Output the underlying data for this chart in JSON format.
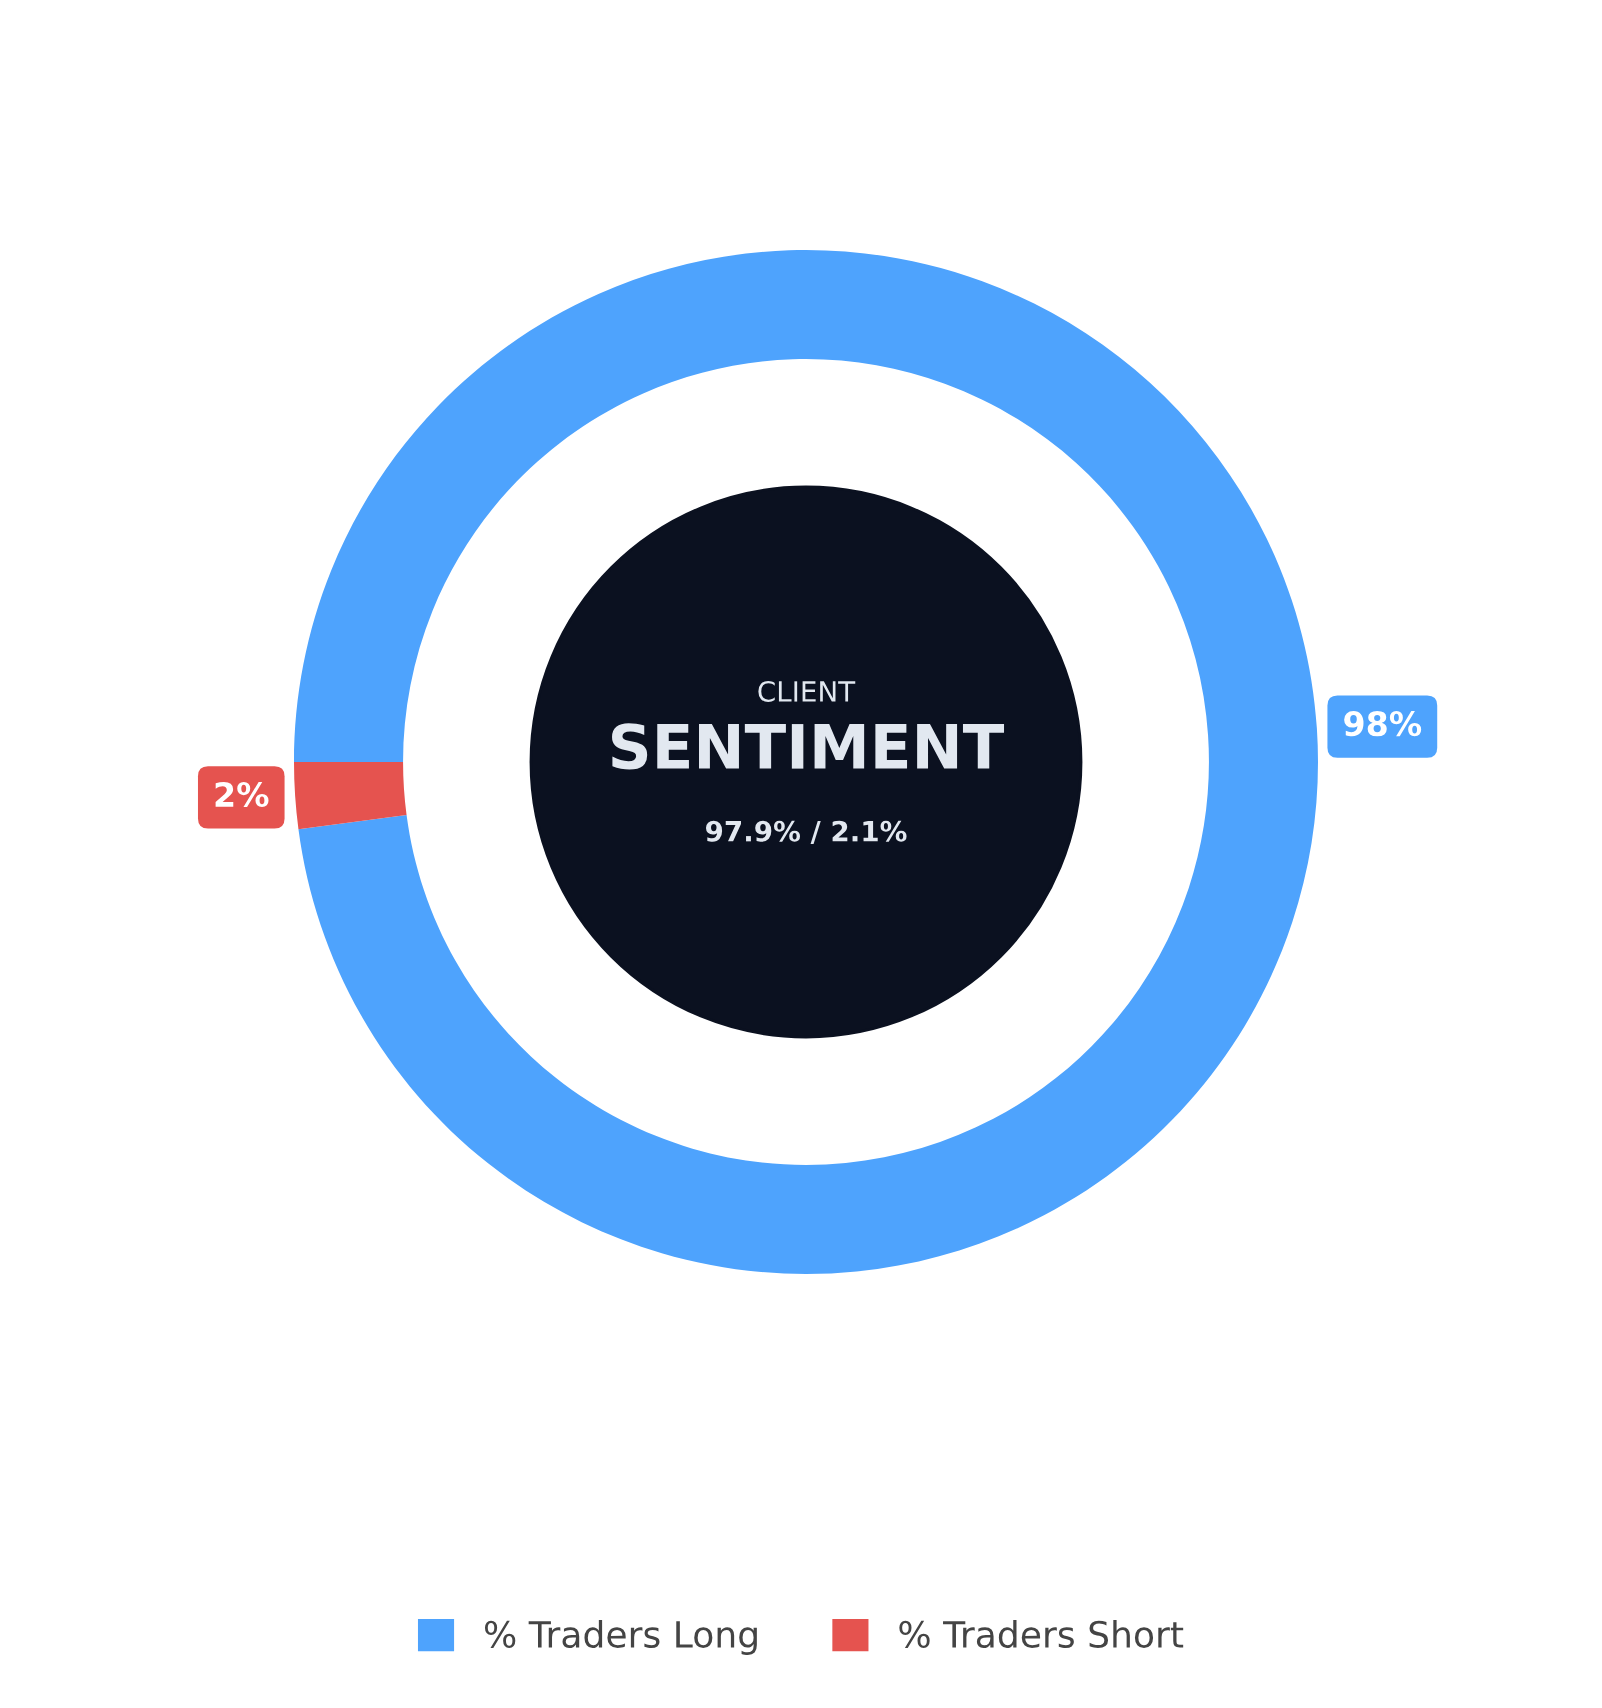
{
  "chart_data": {
    "type": "donut",
    "categories": [
      "% Traders Long",
      "% Traders Short"
    ],
    "values": [
      97.9,
      2.1
    ],
    "colors": [
      "#4ea3fd",
      "#e5534f"
    ],
    "value_labels": [
      "98%",
      "2%"
    ],
    "annotations": [
      "CLIENT",
      "SENTIMENT",
      "97.9% / 2.1%"
    ],
    "legend": "bottom"
  }
}
